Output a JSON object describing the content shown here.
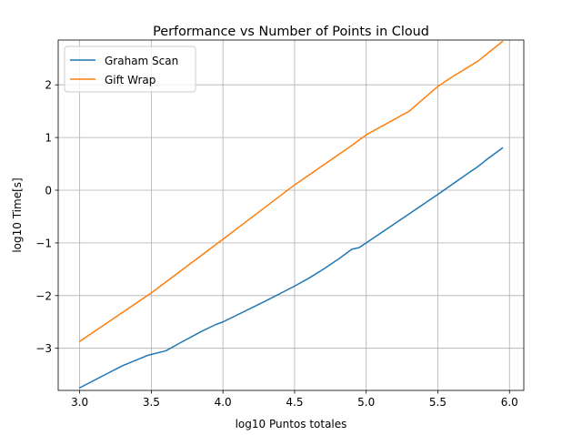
{
  "chart_data": {
    "type": "line",
    "title": "Performance vs Number of Points in Cloud",
    "xlabel": "log10 Puntos totales",
    "ylabel": "log10 Time[s]",
    "xlim": [
      2.85,
      6.1
    ],
    "ylim": [
      -3.8,
      2.85
    ],
    "xticks": [
      3.0,
      3.5,
      4.0,
      4.5,
      5.0,
      5.5,
      6.0
    ],
    "xtick_labels": [
      "3.0",
      "3.5",
      "4.0",
      "4.5",
      "5.0",
      "5.5",
      "6.0"
    ],
    "yticks": [
      -3,
      -2,
      -1,
      0,
      1,
      2
    ],
    "ytick_labels": [
      "−3",
      "−2",
      "−1",
      "0",
      "1",
      "2"
    ],
    "grid": true,
    "legend_position": "top-left",
    "series": [
      {
        "name": "Graham Scan",
        "color": "#1f77b4",
        "x": [
          3.0,
          3.3,
          3.48,
          3.6,
          3.7,
          3.85,
          3.95,
          4.0,
          4.3,
          4.5,
          4.6,
          4.7,
          4.8,
          4.85,
          4.9,
          4.95,
          5.0,
          5.3,
          5.5,
          5.7,
          5.78,
          5.85,
          5.9,
          5.95
        ],
        "y": [
          -3.75,
          -3.33,
          -3.13,
          -3.05,
          -2.9,
          -2.68,
          -2.55,
          -2.5,
          -2.1,
          -1.82,
          -1.67,
          -1.5,
          -1.32,
          -1.22,
          -1.12,
          -1.09,
          -1.0,
          -0.45,
          -0.08,
          0.3,
          0.45,
          0.6,
          0.7,
          0.8
        ]
      },
      {
        "name": "Gift Wrap",
        "color": "#ff7f0e",
        "x": [
          3.0,
          3.5,
          4.0,
          4.5,
          4.9,
          5.0,
          5.3,
          5.5,
          5.6,
          5.78,
          5.95
        ],
        "y": [
          -2.87,
          -1.95,
          -0.93,
          0.1,
          0.85,
          1.05,
          1.5,
          1.97,
          2.15,
          2.45,
          2.82
        ]
      }
    ]
  }
}
